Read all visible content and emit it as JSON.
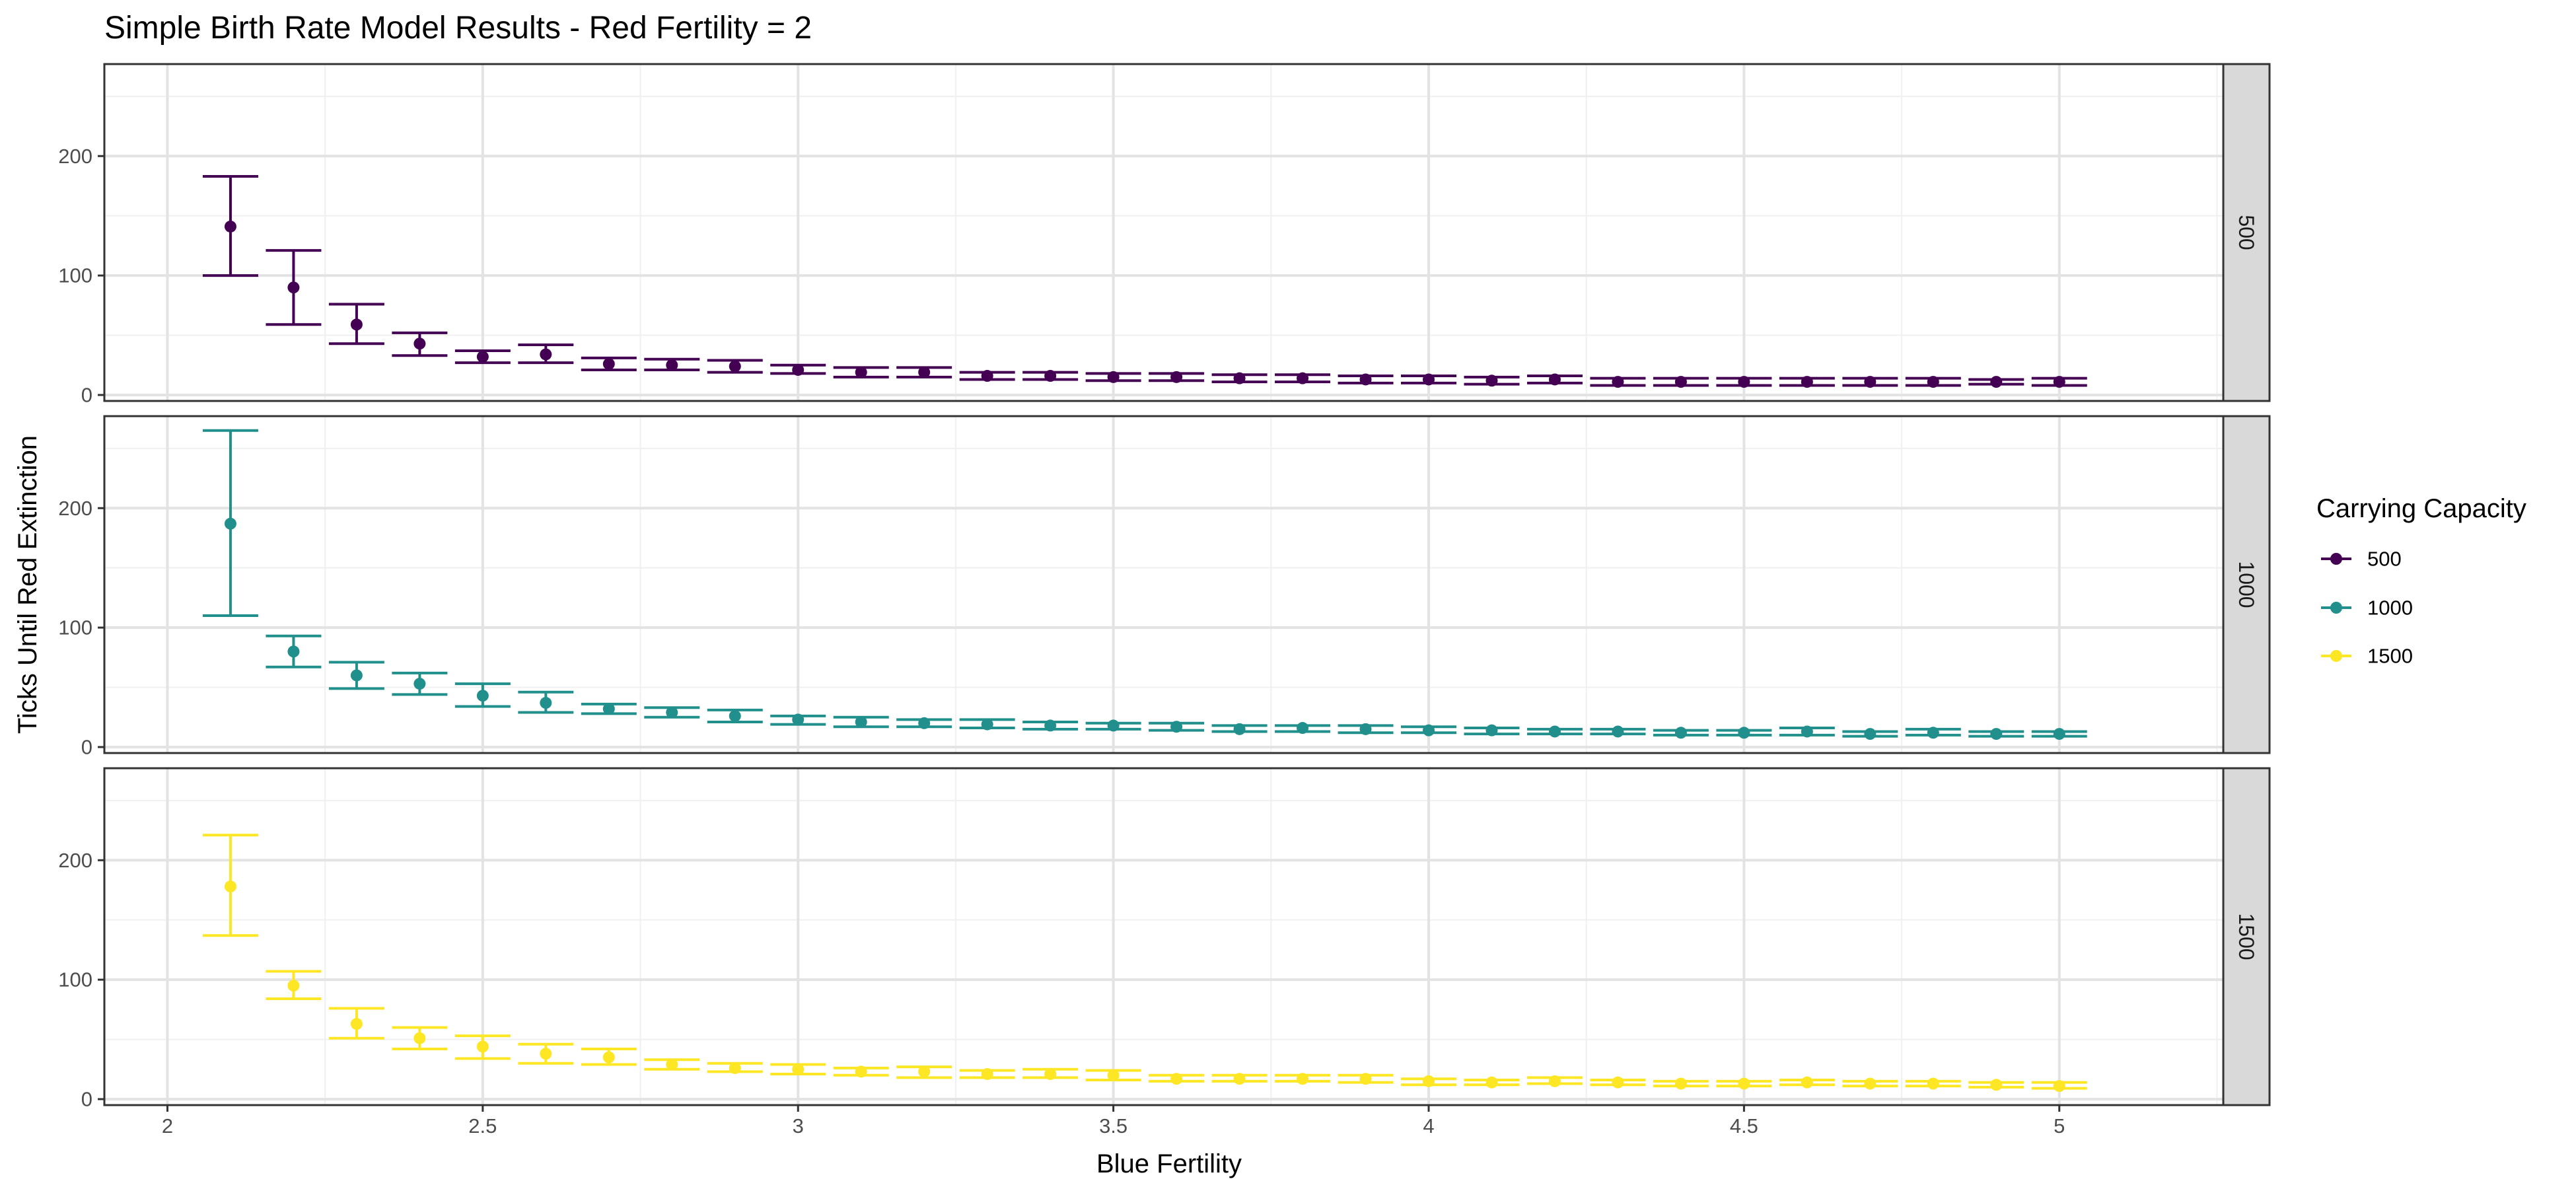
{
  "chart_data": {
    "type": "scatter",
    "title": "Simple Birth Rate Model Results - Red Fertility = 2",
    "xlabel": "Blue Fertility",
    "ylabel": "Ticks Until Red Extinction",
    "xlim": [
      1.9,
      5.26
    ],
    "ylim": [
      -5,
      277
    ],
    "x_ticks": [
      "2",
      "2.5",
      "3",
      "3.5",
      "4",
      "4.5",
      "5"
    ],
    "y_ticks": [
      "0",
      "100",
      "200"
    ],
    "grid": true,
    "facet_by": "Carrying Capacity",
    "legend": {
      "title": "Carrying Capacity",
      "position": "right",
      "entries": [
        "500",
        "1000",
        "1500"
      ]
    },
    "x": [
      2.1,
      2.2,
      2.3,
      2.4,
      2.5,
      2.6,
      2.7,
      2.8,
      2.9,
      3.0,
      3.1,
      3.2,
      3.3,
      3.4,
      3.5,
      3.6,
      3.7,
      3.8,
      3.9,
      4.0,
      4.1,
      4.2,
      4.3,
      4.4,
      4.5,
      4.6,
      4.7,
      4.8,
      4.9,
      5.0
    ],
    "series": [
      {
        "name": "500",
        "facet_label": "500",
        "color": "#440154",
        "mean": [
          141,
          90,
          59,
          43,
          32,
          34,
          26,
          25,
          24,
          21,
          19,
          19,
          16,
          16,
          15,
          15,
          14,
          14,
          13,
          13,
          12,
          13,
          11,
          11,
          11,
          11,
          11,
          11,
          11,
          11
        ],
        "low": [
          100,
          59,
          43,
          33,
          27,
          27,
          21,
          21,
          19,
          18,
          15,
          15,
          13,
          13,
          12,
          12,
          11,
          11,
          10,
          10,
          9,
          10,
          8,
          8,
          8,
          8,
          8,
          8,
          9,
          8
        ],
        "high": [
          183,
          121,
          76,
          52,
          37,
          42,
          31,
          30,
          29,
          25,
          23,
          23,
          19,
          19,
          18,
          18,
          17,
          17,
          16,
          16,
          15,
          16,
          14,
          14,
          14,
          14,
          14,
          14,
          13,
          14
        ]
      },
      {
        "name": "1000",
        "facet_label": "1000",
        "color": "#21908c",
        "mean": [
          187,
          80,
          60,
          53,
          43,
          37,
          32,
          29,
          26,
          23,
          21,
          20,
          19,
          18,
          18,
          17,
          15,
          16,
          15,
          14,
          14,
          13,
          13,
          12,
          12,
          13,
          11,
          12,
          11,
          11
        ],
        "low": [
          110,
          67,
          49,
          44,
          34,
          29,
          28,
          25,
          21,
          19,
          17,
          17,
          16,
          15,
          15,
          14,
          13,
          13,
          12,
          12,
          11,
          11,
          11,
          10,
          10,
          10,
          9,
          10,
          9,
          9
        ],
        "high": [
          265,
          93,
          71,
          62,
          53,
          46,
          36,
          33,
          31,
          26,
          25,
          23,
          23,
          21,
          20,
          20,
          18,
          18,
          18,
          17,
          16,
          15,
          15,
          14,
          14,
          16,
          13,
          15,
          13,
          13
        ]
      },
      {
        "name": "1500",
        "facet_label": "1500",
        "color": "#fde725",
        "mean": [
          178,
          95,
          63,
          51,
          44,
          38,
          35,
          29,
          26,
          25,
          23,
          23,
          21,
          21,
          20,
          17,
          17,
          17,
          17,
          15,
          14,
          15,
          14,
          13,
          13,
          14,
          13,
          13,
          12,
          11
        ],
        "low": [
          137,
          84,
          51,
          42,
          34,
          30,
          29,
          25,
          23,
          21,
          20,
          18,
          18,
          18,
          16,
          15,
          15,
          15,
          14,
          12,
          12,
          13,
          12,
          11,
          11,
          12,
          11,
          11,
          10,
          9
        ],
        "high": [
          221,
          107,
          76,
          60,
          53,
          46,
          42,
          33,
          30,
          29,
          26,
          27,
          24,
          25,
          24,
          20,
          20,
          20,
          20,
          17,
          16,
          18,
          16,
          15,
          15,
          16,
          15,
          15,
          14,
          14
        ]
      }
    ]
  }
}
